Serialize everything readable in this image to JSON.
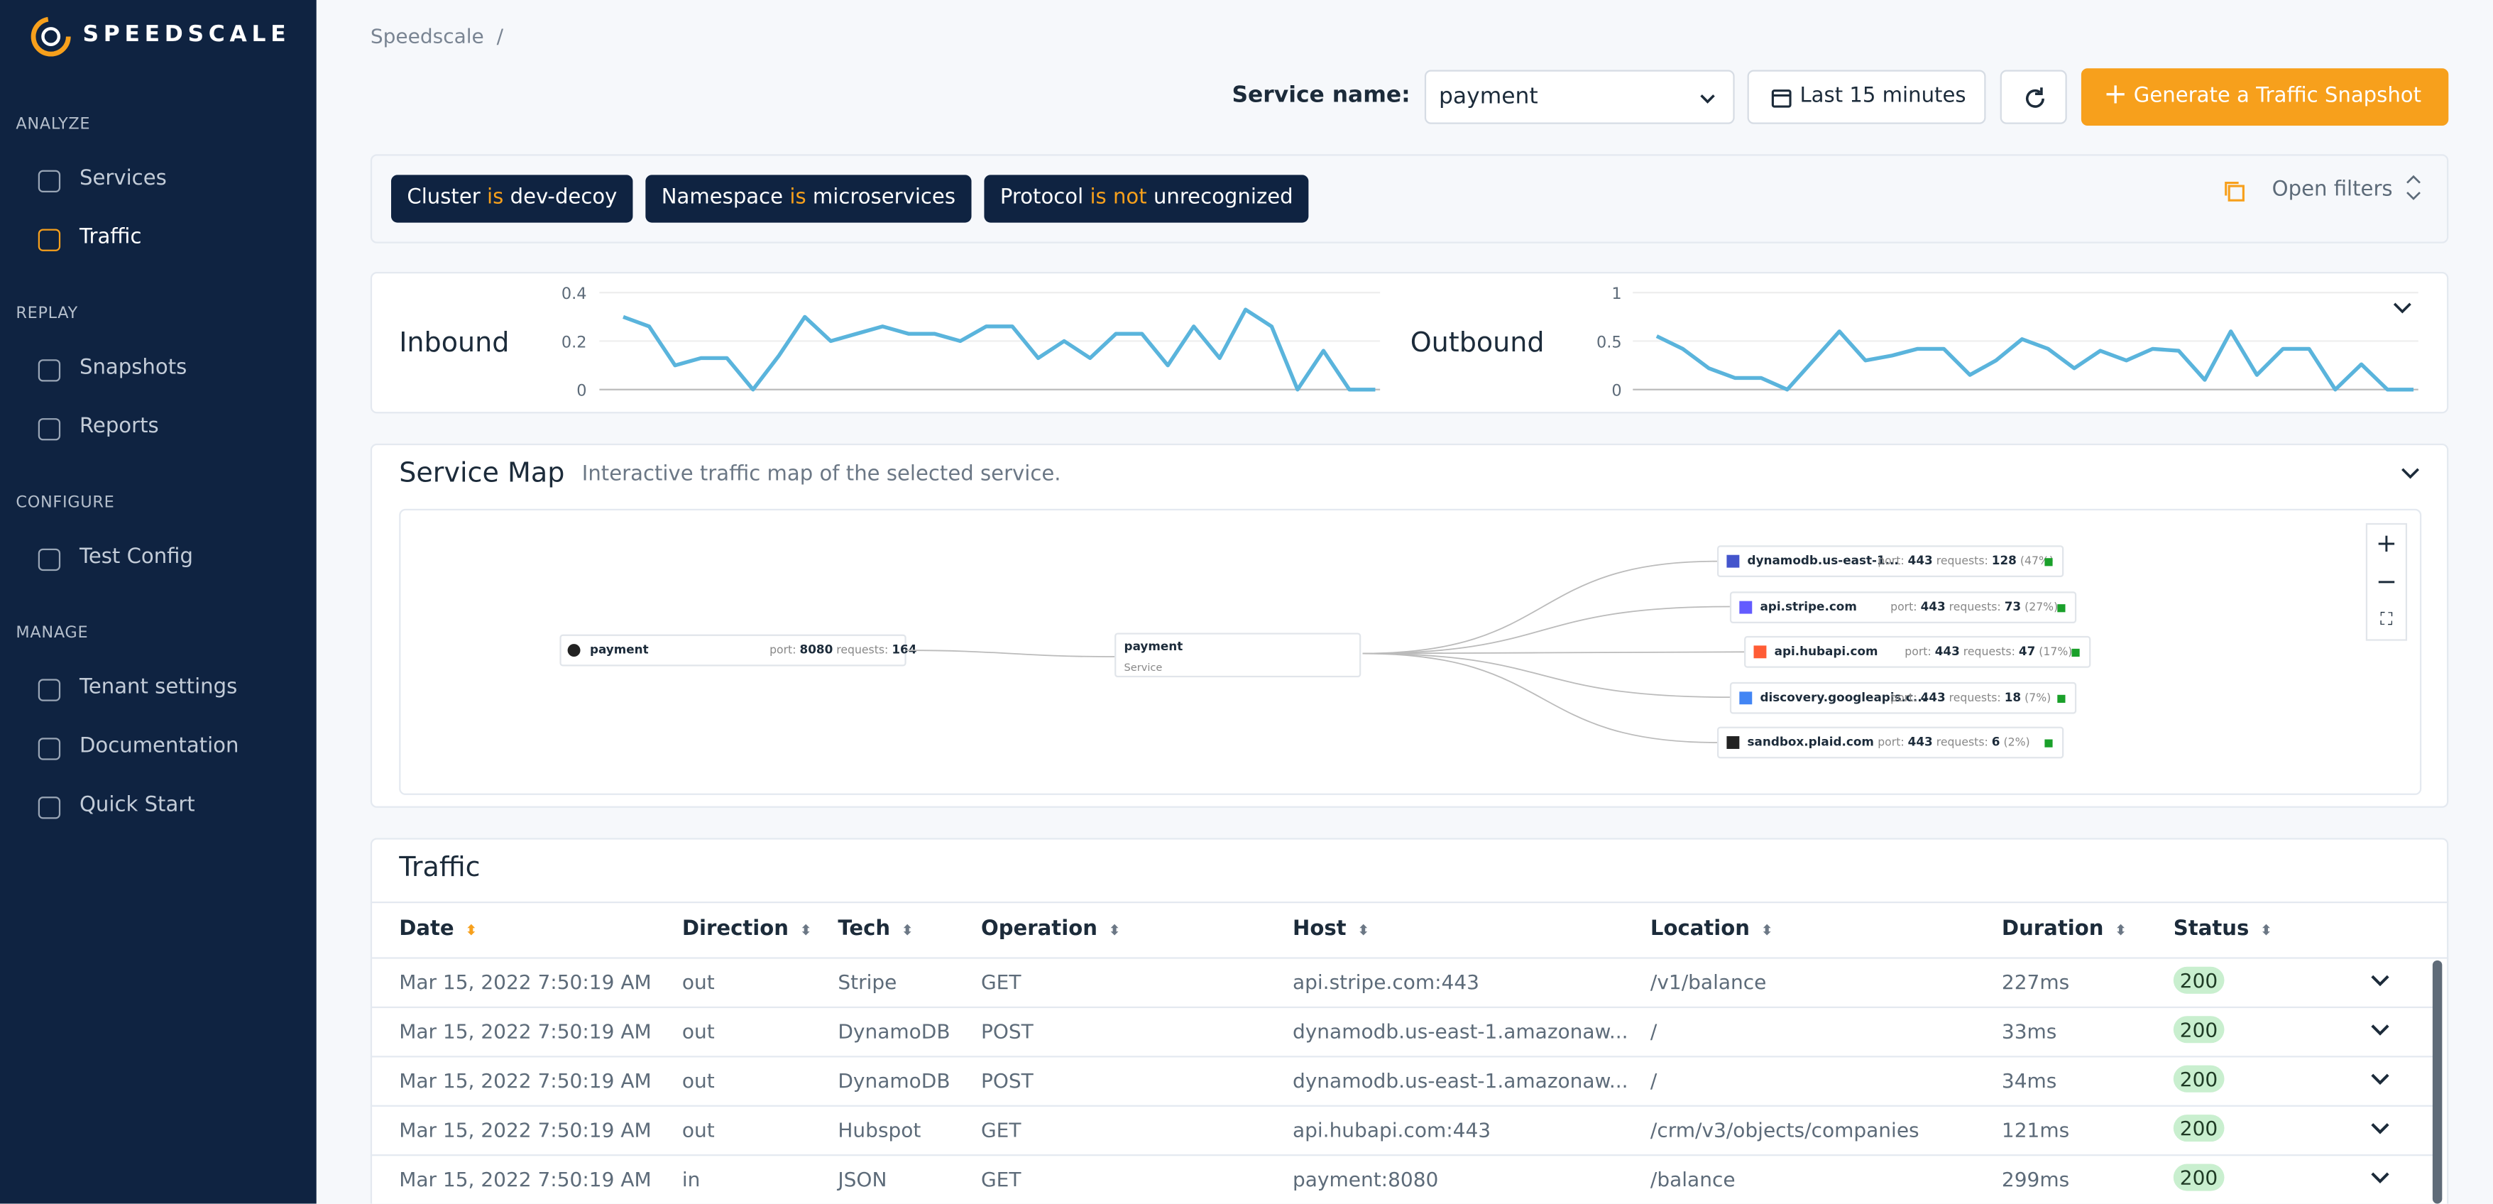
{
  "brand": "SPEEDSCALE",
  "sidebar": {
    "sections": [
      {
        "title": "ANALYZE",
        "items": [
          {
            "label": "Services",
            "active": false
          },
          {
            "label": "Traffic",
            "active": true
          }
        ]
      },
      {
        "title": "REPLAY",
        "items": [
          {
            "label": "Snapshots",
            "active": false
          },
          {
            "label": "Reports",
            "active": false
          }
        ]
      },
      {
        "title": "CONFIGURE",
        "items": [
          {
            "label": "Test Config",
            "active": false
          }
        ]
      },
      {
        "title": "MANAGE",
        "items": [
          {
            "label": "Tenant settings",
            "active": false
          },
          {
            "label": "Documentation",
            "active": false
          },
          {
            "label": "Quick Start",
            "active": false
          }
        ]
      }
    ]
  },
  "breadcrumb": {
    "item": "Speedscale",
    "separator": "/"
  },
  "toolbar": {
    "service_label": "Service name:",
    "service_value": "payment",
    "time_range": "Last 15 minutes",
    "snapshot_button": "Generate a Traffic Snapshot"
  },
  "filters": {
    "chips": [
      {
        "field": "Cluster",
        "operator": "is",
        "value": "dev-decoy"
      },
      {
        "field": "Namespace",
        "operator": "is",
        "value": "microservices"
      },
      {
        "field": "Protocol",
        "operator": "is not",
        "value": "unrecognized"
      }
    ],
    "open_label": "Open filters"
  },
  "charts": [
    {
      "type": "line",
      "title": "Inbound",
      "color": "#5ab4dc",
      "ylim": [
        0,
        0.4
      ],
      "yticks": [
        0,
        0.2,
        0.4
      ],
      "values": [
        0.3,
        0.26,
        0.1,
        0.13,
        0.13,
        0,
        0.14,
        0.3,
        0.2,
        0.23,
        0.26,
        0.23,
        0.23,
        0.2,
        0.26,
        0.26,
        0.13,
        0.2,
        0.13,
        0.23,
        0.23,
        0.1,
        0.26,
        0.13,
        0.33,
        0.26,
        0,
        0.16,
        0,
        0
      ]
    },
    {
      "type": "line",
      "title": "Outbound",
      "color": "#5ab4dc",
      "ylim": [
        0,
        1
      ],
      "yticks": [
        0,
        0.5,
        1
      ],
      "values": [
        0.55,
        0.42,
        0.22,
        0.12,
        0.12,
        0,
        0.3,
        0.6,
        0.3,
        0.35,
        0.42,
        0.42,
        0.15,
        0.3,
        0.52,
        0.42,
        0.22,
        0.4,
        0.3,
        0.42,
        0.4,
        0.1,
        0.6,
        0.15,
        0.42,
        0.42,
        0,
        0.26,
        0,
        0
      ]
    }
  ],
  "service_map": {
    "title": "Service Map",
    "subtitle": "Interactive traffic map of the selected service.",
    "port_label": "port:",
    "requests_label": "requests:",
    "source": {
      "name": "payment",
      "port": "8080",
      "requests": "164"
    },
    "center": {
      "name": "payment",
      "kind": "Service"
    },
    "targets": [
      {
        "name": "dynamodb.us-east-1...",
        "port": "443",
        "requests": "128",
        "share": "(47%)"
      },
      {
        "name": "api.stripe.com",
        "port": "443",
        "requests": "73",
        "share": "(27%)"
      },
      {
        "name": "api.hubapi.com",
        "port": "443",
        "requests": "47",
        "share": "(17%)"
      },
      {
        "name": "discovery.googleapis.c...",
        "port": "443",
        "requests": "18",
        "share": "(7%)"
      },
      {
        "name": "sandbox.plaid.com",
        "port": "443",
        "requests": "6",
        "share": "(2%)"
      }
    ]
  },
  "table": {
    "title": "Traffic",
    "columns": [
      "Date",
      "Direction",
      "Tech",
      "Operation",
      "Host",
      "Location",
      "Duration",
      "Status"
    ],
    "rows": [
      [
        "Mar 15, 2022 7:50:19 AM",
        "out",
        "Stripe",
        "GET",
        "api.stripe.com:443",
        "/v1/balance",
        "227ms",
        "200"
      ],
      [
        "Mar 15, 2022 7:50:19 AM",
        "out",
        "DynamoDB",
        "POST",
        "dynamodb.us-east-1.amazonaw...",
        "/",
        "33ms",
        "200"
      ],
      [
        "Mar 15, 2022 7:50:19 AM",
        "out",
        "DynamoDB",
        "POST",
        "dynamodb.us-east-1.amazonaw...",
        "/",
        "34ms",
        "200"
      ],
      [
        "Mar 15, 2022 7:50:19 AM",
        "out",
        "Hubspot",
        "GET",
        "api.hubapi.com:443",
        "/crm/v3/objects/companies",
        "121ms",
        "200"
      ],
      [
        "Mar 15, 2022 7:50:19 AM",
        "in",
        "JSON",
        "GET",
        "payment:8080",
        "/balance",
        "299ms",
        "200"
      ]
    ]
  }
}
